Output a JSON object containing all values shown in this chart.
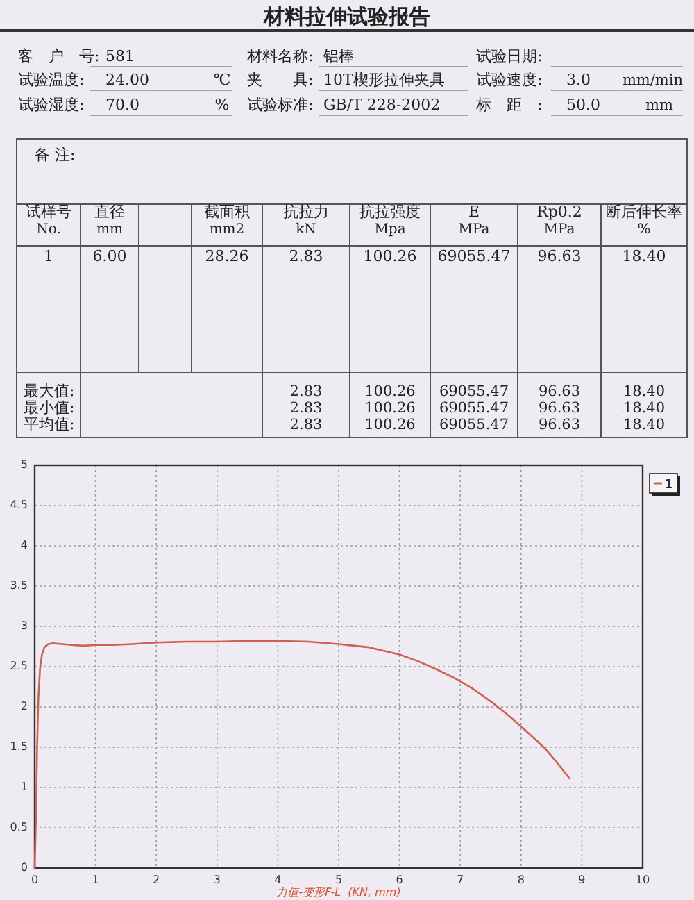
{
  "chart_data": [
    {
      "type": "other",
      "title": "材料拉伸试验报告",
      "annotations": [
        "客　户　号:",
        "581",
        "材料名称:",
        "铝棒",
        "试验日期:",
        "试验温度:",
        "24.00",
        "℃",
        "夹　　具:",
        "10T楔形拉伸夹具",
        "试验速度:",
        "3.0",
        "mm/min",
        "试验湿度:",
        "70.0",
        "%",
        "试验标准:",
        "GB/T 228-2002",
        "标　距　:",
        "50.0",
        "mm",
        "备 注:",
        "试样号",
        "No.",
        "直径",
        "mm",
        "截面积",
        "mm2",
        "抗拉力",
        "kN",
        "抗拉强度",
        "Mpa",
        "E",
        "MPa",
        "Rp0.2",
        "MPa",
        "断后伸长率",
        "%",
        "1",
        "6.00",
        "28.26",
        "2.83",
        "100.26",
        "69055.47",
        "96.63",
        "18.40",
        "最大值:",
        "2.83",
        "100.26",
        "69055.47",
        "96.63",
        "18.40",
        "最小值:",
        "2.83",
        "100.26",
        "69055.47",
        "96.63",
        "18.40",
        "平均值:",
        "2.83",
        "100.26",
        "69055.47",
        "96.63",
        "18.40"
      ]
    },
    {
      "type": "line",
      "xlabel": "力值-变形F-L  (KN, mm)",
      "xlim": [
        0,
        10
      ],
      "ylim": [
        0,
        5
      ],
      "xticks": [
        0,
        1,
        2,
        3,
        4,
        5,
        6,
        7,
        8,
        9,
        10
      ],
      "yticks": [
        0,
        0.5,
        1,
        1.5,
        2,
        2.5,
        3,
        3.5,
        4,
        4.5,
        5
      ],
      "grid": true,
      "legend": "top right",
      "line_style": "solid",
      "series": [
        {
          "name": "1",
          "color": "#d0604f",
          "x": [
            0,
            0.02,
            0.04,
            0.06,
            0.09,
            0.12,
            0.16,
            0.22,
            0.3,
            0.45,
            0.6,
            0.8,
            1.0,
            1.3,
            1.6,
            2.0,
            2.5,
            3.0,
            3.5,
            4.0,
            4.5,
            5.0,
            5.5,
            6.0,
            6.3,
            6.6,
            6.9,
            7.2,
            7.5,
            7.8,
            8.1,
            8.4,
            8.6,
            8.8
          ],
          "values": [
            0,
            0.6,
            1.5,
            2.1,
            2.5,
            2.65,
            2.74,
            2.78,
            2.79,
            2.78,
            2.77,
            2.76,
            2.77,
            2.77,
            2.78,
            2.8,
            2.81,
            2.81,
            2.82,
            2.82,
            2.81,
            2.78,
            2.74,
            2.65,
            2.57,
            2.47,
            2.36,
            2.23,
            2.07,
            1.89,
            1.69,
            1.48,
            1.3,
            1.11
          ]
        }
      ]
    }
  ]
}
